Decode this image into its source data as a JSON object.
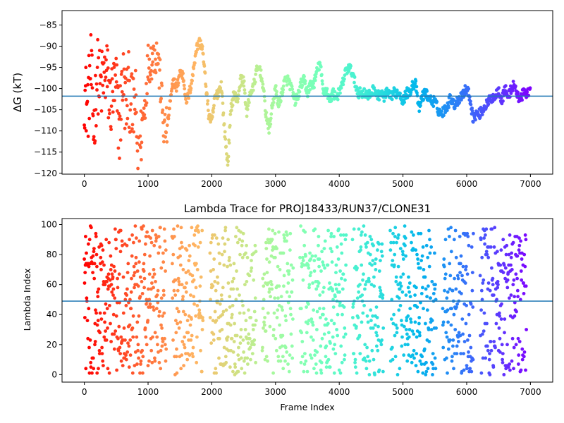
{
  "chart_data": [
    {
      "type": "scatter",
      "title": "",
      "xlabel": "",
      "ylabel": "ΔG (kT)",
      "xlim": [
        -350,
        7350
      ],
      "ylim": [
        -120.2,
        -81.6
      ],
      "xticks": [
        0,
        1000,
        2000,
        3000,
        4000,
        5000,
        6000,
        7000
      ],
      "yticks": [
        -120,
        -115,
        -110,
        -105,
        -100,
        -95,
        -90,
        -85
      ],
      "colormap": "rainbow (red at frame 0 to violet at frame 7000)",
      "hline": {
        "y": -101.8,
        "color": "#1f77b4"
      },
      "approx_trace": {
        "x": [
          0,
          50,
          100,
          150,
          200,
          250,
          300,
          350,
          400,
          450,
          500,
          550,
          600,
          650,
          700,
          750,
          800,
          850,
          900,
          950,
          1000,
          1050,
          1100,
          1150,
          1200,
          1250,
          1300,
          1350,
          1400,
          1450,
          1500,
          1550,
          1600,
          1650,
          1700,
          1750,
          1800,
          1850,
          1900,
          1950,
          2000,
          2050,
          2100,
          2150,
          2200,
          2250,
          2300,
          2350,
          2400,
          2450,
          2500,
          2550,
          2600,
          2650,
          2700,
          2750,
          2800,
          2850,
          2900,
          2950,
          3000,
          3050,
          3100,
          3150,
          3200,
          3250,
          3300,
          3350,
          3400,
          3450,
          3500,
          3550,
          3600,
          3650,
          3700,
          3750,
          3800,
          3850,
          3900,
          3950,
          4000,
          4050,
          4100,
          4150,
          4200,
          4250,
          4300,
          4350,
          4400,
          4450,
          4500,
          4550,
          4600,
          4650,
          4700,
          4750,
          4800,
          4850,
          4900,
          4950,
          5000,
          5050,
          5100,
          5150,
          5200,
          5250,
          5300,
          5350,
          5400,
          5450,
          5500,
          5550,
          5600,
          5650,
          5700,
          5750,
          5800,
          5850,
          5900,
          5950,
          6000,
          6050,
          6100,
          6150,
          6200,
          6250,
          6300,
          6350,
          6400,
          6450,
          6500,
          6550,
          6600,
          6650,
          6700,
          6750,
          6800,
          6850,
          6900,
          6950,
          7000
        ],
        "y": [
          -100,
          -105,
          -95,
          -110,
          -96,
          -100,
          -98,
          -96,
          -104,
          -101,
          -100,
          -110,
          -97,
          -104,
          -100,
          -106,
          -103,
          -120,
          -109,
          -104,
          -94,
          -93,
          -92,
          -92,
          -100,
          -110,
          -109,
          -103,
          -98,
          -100,
          -96,
          -97,
          -103,
          -101,
          -97,
          -91,
          -89,
          -90,
          -98,
          -106,
          -108,
          -102,
          -101,
          -99,
          -110,
          -118,
          -105,
          -101,
          -103,
          -98,
          -98,
          -106,
          -101,
          -100,
          -96,
          -95,
          -99,
          -106,
          -110,
          -104,
          -100,
          -104,
          -101,
          -98,
          -98,
          -100,
          -103,
          -102,
          -99,
          -98,
          -101,
          -99,
          -99,
          -96,
          -94,
          -101,
          -100,
          -103,
          -101,
          -102,
          -101,
          -99,
          -96,
          -95,
          -96,
          -99,
          -101,
          -101,
          -101,
          -102,
          -101,
          -100,
          -102,
          -101,
          -102,
          -101,
          -102,
          -101,
          -101,
          -101,
          -103,
          -101,
          -101,
          -99,
          -99,
          -105,
          -102,
          -101,
          -102,
          -103,
          -103,
          -105,
          -106,
          -105,
          -104,
          -102,
          -104,
          -103,
          -102,
          -101,
          -100,
          -102,
          -107,
          -106,
          -106,
          -105,
          -104,
          -103,
          -102,
          -102,
          -100,
          -103,
          -100,
          -102,
          -100,
          -99,
          -102,
          -102,
          -101,
          -101,
          -100
        ]
      }
    },
    {
      "type": "scatter",
      "title": "Lambda Trace for PROJ18433/RUN37/CLONE31",
      "xlabel": "Frame Index",
      "ylabel": "Lambda Index",
      "xlim": [
        -350,
        7350
      ],
      "ylim": [
        -5,
        104
      ],
      "xticks": [
        0,
        1000,
        2000,
        3000,
        4000,
        5000,
        6000,
        7000
      ],
      "yticks": [
        0,
        20,
        40,
        60,
        80,
        100
      ],
      "colormap": "rainbow (red at frame 0 to violet at frame 7000)",
      "hline": {
        "y": 49,
        "color": "#1f77b4"
      },
      "approx_range": {
        "lambda_min": 0,
        "lambda_max": 99
      }
    }
  ]
}
